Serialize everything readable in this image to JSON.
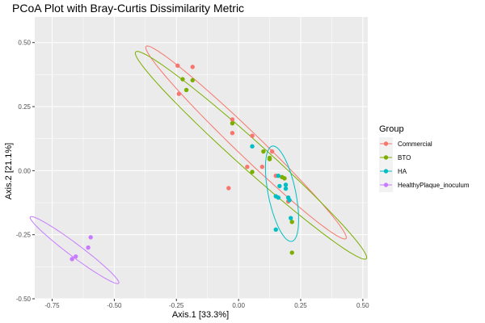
{
  "chart_data": {
    "type": "scatter",
    "title": "PCoA Plot with Bray-Curtis Dissimilarity Metric",
    "xlabel": "Axis.1   [33.3%]",
    "ylabel": "Axis.2   [21.1%]",
    "xlim": [
      -0.82,
      0.52
    ],
    "ylim": [
      -0.5,
      0.6
    ],
    "x_ticks": [
      -0.75,
      -0.5,
      -0.25,
      0,
      0.25,
      0.5
    ],
    "x_tick_labels": [
      "-0.75",
      "-0.50",
      "-0.25",
      "0.00",
      "0.25",
      "0.50"
    ],
    "y_ticks": [
      -0.5,
      -0.25,
      0,
      0.25,
      0.5
    ],
    "y_tick_labels": [
      "-0.50",
      "-0.25",
      "0.00",
      "0.25",
      "0.50"
    ],
    "grid": true,
    "panel_background": "#ebebeb",
    "legend": {
      "title": "Group",
      "position": "right"
    },
    "series": [
      {
        "name": "Commercial",
        "color": "#f8766d",
        "points": [
          [
            -0.245,
            0.41
          ],
          [
            -0.185,
            0.405
          ],
          [
            -0.24,
            0.3
          ],
          [
            -0.025,
            0.2
          ],
          [
            -0.025,
            0.147
          ],
          [
            0.055,
            0.136
          ],
          [
            0.135,
            0.075
          ],
          [
            0.035,
            0.015
          ],
          [
            0.095,
            0.015
          ],
          [
            -0.04,
            -0.068
          ],
          [
            0.15,
            -0.02
          ],
          [
            0.2,
            -0.12
          ]
        ],
        "ellipse": {
          "center": [
            0.03,
            0.11
          ],
          "semi_axes": [
            0.55,
            0.048
          ],
          "angle_deg": -43
        }
      },
      {
        "name": "BTO",
        "color": "#7cae00",
        "points": [
          [
            -0.225,
            0.357
          ],
          [
            -0.21,
            0.315
          ],
          [
            -0.185,
            0.353
          ],
          [
            -0.025,
            0.185
          ],
          [
            0.1,
            0.075
          ],
          [
            0.125,
            0.05
          ],
          [
            0.125,
            0.045
          ],
          [
            0.055,
            -0.005
          ],
          [
            0.175,
            -0.025
          ],
          [
            0.185,
            -0.03
          ],
          [
            0.215,
            -0.2
          ],
          [
            0.215,
            -0.32
          ]
        ],
        "ellipse": {
          "center": [
            0.05,
            0.06
          ],
          "semi_axes": [
            0.615,
            0.055
          ],
          "angle_deg": -41
        }
      },
      {
        "name": "HA",
        "color": "#00bfc4",
        "points": [
          [
            0.055,
            0.095
          ],
          [
            0.16,
            -0.02
          ],
          [
            0.165,
            -0.06
          ],
          [
            0.19,
            -0.055
          ],
          [
            0.19,
            -0.07
          ],
          [
            0.15,
            -0.1
          ],
          [
            0.16,
            -0.105
          ],
          [
            0.2,
            -0.105
          ],
          [
            0.205,
            -0.115
          ],
          [
            0.21,
            -0.185
          ],
          [
            0.15,
            -0.23
          ]
        ],
        "ellipse": {
          "center": [
            0.175,
            -0.09
          ],
          "semi_axes": [
            0.19,
            0.055
          ],
          "angle_deg": -78
        }
      },
      {
        "name": "HealthyPlaque_inoculum",
        "color": "#c77cff",
        "points": [
          [
            -0.595,
            -0.26
          ],
          [
            -0.605,
            -0.3
          ],
          [
            -0.655,
            -0.335
          ],
          [
            -0.67,
            -0.345
          ]
        ],
        "ellipse": {
          "center": [
            -0.66,
            -0.31
          ],
          "semi_axes": [
            0.22,
            0.025
          ],
          "angle_deg": -36
        }
      }
    ]
  }
}
